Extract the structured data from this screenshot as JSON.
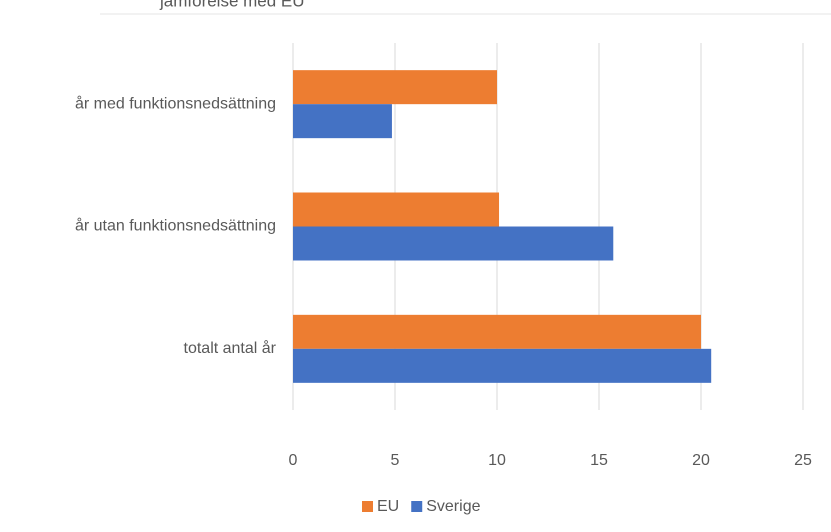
{
  "chart_data": {
    "type": "bar",
    "orientation": "horizontal",
    "title": "jämförelse med EU",
    "categories": [
      "år med funktionsnedsättning",
      "år utan funktionsnedsättning",
      "totalt antal år"
    ],
    "series": [
      {
        "name": "EU",
        "color": "#ed7d31",
        "values": [
          10.0,
          10.1,
          20.0
        ]
      },
      {
        "name": "Sverige",
        "color": "#4472c4",
        "values": [
          4.85,
          15.7,
          20.5
        ]
      }
    ],
    "xlim": [
      0,
      25
    ],
    "xticks": [
      0,
      5,
      10,
      15,
      20,
      25
    ],
    "grid": true,
    "legend": "bottom"
  }
}
